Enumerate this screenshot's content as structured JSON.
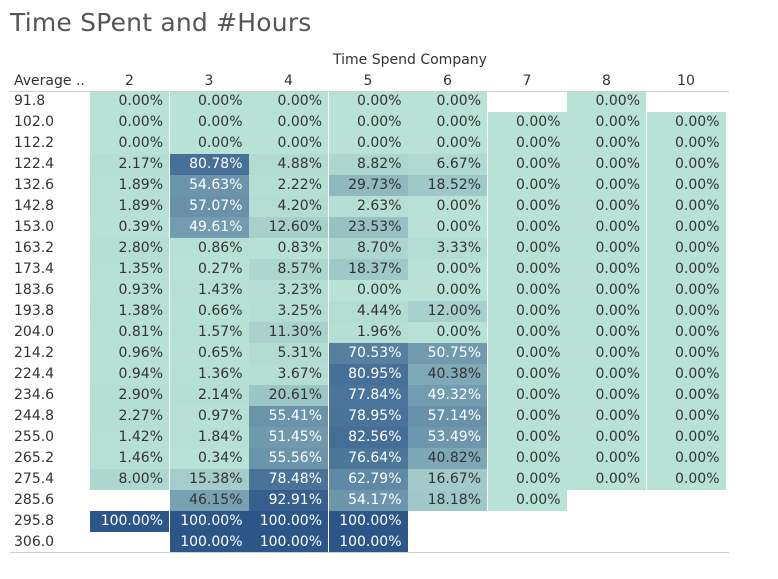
{
  "title": "Time SPent and #Hours",
  "chart_data": {
    "type": "heatmap",
    "title": "Time SPent and #Hours",
    "xlabel": "Time Spend Company",
    "ylabel": "Average ..",
    "columns": [
      "2",
      "3",
      "4",
      "5",
      "6",
      "7",
      "8",
      "10"
    ],
    "rows": [
      "91.8",
      "102.0",
      "112.2",
      "122.4",
      "132.6",
      "142.8",
      "153.0",
      "163.2",
      "173.4",
      "183.6",
      "193.8",
      "204.0",
      "214.2",
      "224.4",
      "234.6",
      "244.8",
      "255.0",
      "265.2",
      "275.4",
      "285.6",
      "295.8",
      "306.0"
    ],
    "values": [
      [
        "0.00%",
        "0.00%",
        "0.00%",
        "0.00%",
        "0.00%",
        null,
        "0.00%",
        null
      ],
      [
        "0.00%",
        "0.00%",
        "0.00%",
        "0.00%",
        "0.00%",
        "0.00%",
        "0.00%",
        "0.00%"
      ],
      [
        "0.00%",
        "0.00%",
        "0.00%",
        "0.00%",
        "0.00%",
        "0.00%",
        "0.00%",
        "0.00%"
      ],
      [
        "2.17%",
        "80.78%",
        "4.88%",
        "8.82%",
        "6.67%",
        "0.00%",
        "0.00%",
        "0.00%"
      ],
      [
        "1.89%",
        "54.63%",
        "2.22%",
        "29.73%",
        "18.52%",
        "0.00%",
        "0.00%",
        "0.00%"
      ],
      [
        "1.89%",
        "57.07%",
        "4.20%",
        "2.63%",
        "0.00%",
        "0.00%",
        "0.00%",
        "0.00%"
      ],
      [
        "0.39%",
        "49.61%",
        "12.60%",
        "23.53%",
        "0.00%",
        "0.00%",
        "0.00%",
        "0.00%"
      ],
      [
        "2.80%",
        "0.86%",
        "0.83%",
        "8.70%",
        "3.33%",
        "0.00%",
        "0.00%",
        "0.00%"
      ],
      [
        "1.35%",
        "0.27%",
        "8.57%",
        "18.37%",
        "0.00%",
        "0.00%",
        "0.00%",
        "0.00%"
      ],
      [
        "0.93%",
        "1.43%",
        "3.23%",
        "0.00%",
        "0.00%",
        "0.00%",
        "0.00%",
        "0.00%"
      ],
      [
        "1.38%",
        "0.66%",
        "3.25%",
        "4.44%",
        "12.00%",
        "0.00%",
        "0.00%",
        "0.00%"
      ],
      [
        "0.81%",
        "1.57%",
        "11.30%",
        "1.96%",
        "0.00%",
        "0.00%",
        "0.00%",
        "0.00%"
      ],
      [
        "0.96%",
        "0.65%",
        "5.31%",
        "70.53%",
        "50.75%",
        "0.00%",
        "0.00%",
        "0.00%"
      ],
      [
        "0.94%",
        "1.36%",
        "3.67%",
        "80.95%",
        "40.38%",
        "0.00%",
        "0.00%",
        "0.00%"
      ],
      [
        "2.90%",
        "2.14%",
        "20.61%",
        "77.84%",
        "49.32%",
        "0.00%",
        "0.00%",
        "0.00%"
      ],
      [
        "2.27%",
        "0.97%",
        "55.41%",
        "78.95%",
        "57.14%",
        "0.00%",
        "0.00%",
        "0.00%"
      ],
      [
        "1.42%",
        "1.84%",
        "51.45%",
        "82.56%",
        "53.49%",
        "0.00%",
        "0.00%",
        "0.00%"
      ],
      [
        "1.46%",
        "0.34%",
        "55.56%",
        "76.64%",
        "40.82%",
        "0.00%",
        "0.00%",
        "0.00%"
      ],
      [
        "8.00%",
        "15.38%",
        "78.48%",
        "62.79%",
        "16.67%",
        "0.00%",
        "0.00%",
        "0.00%"
      ],
      [
        null,
        "46.15%",
        "92.91%",
        "54.17%",
        "18.18%",
        "0.00%",
        null,
        null
      ],
      [
        "100.00%",
        "100.00%",
        "100.00%",
        "100.00%",
        null,
        null,
        null,
        null
      ],
      [
        null,
        "100.00%",
        "100.00%",
        "100.00%",
        null,
        null,
        null,
        null
      ]
    ],
    "color_low": "#b9e2d6",
    "color_high": "#2c5589",
    "grid": false
  }
}
